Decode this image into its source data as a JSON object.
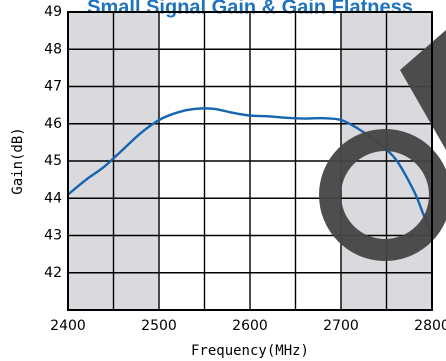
{
  "chart_data": {
    "type": "line",
    "title": "Small Signal Gain & Gain Flatness",
    "xlabel": "Frequency(MHz)",
    "ylabel": "Gain(dB)",
    "xlim": [
      2400,
      2800
    ],
    "ylim": [
      41,
      49
    ],
    "x_ticks": [
      2400,
      2500,
      2600,
      2700,
      2800
    ],
    "y_ticks": [
      42,
      43,
      44,
      45,
      46,
      47,
      48,
      49
    ],
    "grid": true,
    "shaded_x_ranges": [
      [
        2400,
        2500
      ],
      [
        2700,
        2800
      ]
    ],
    "series": [
      {
        "color": "#1565b0",
        "points": [
          [
            2400,
            44.1
          ],
          [
            2420,
            44.5
          ],
          [
            2440,
            44.85
          ],
          [
            2460,
            45.3
          ],
          [
            2480,
            45.75
          ],
          [
            2500,
            46.1
          ],
          [
            2520,
            46.3
          ],
          [
            2540,
            46.4
          ],
          [
            2560,
            46.4
          ],
          [
            2580,
            46.3
          ],
          [
            2600,
            46.22
          ],
          [
            2620,
            46.2
          ],
          [
            2640,
            46.16
          ],
          [
            2660,
            46.14
          ],
          [
            2680,
            46.15
          ],
          [
            2700,
            46.1
          ],
          [
            2720,
            45.85
          ],
          [
            2740,
            45.5
          ],
          [
            2760,
            45.05
          ],
          [
            2780,
            44.2
          ],
          [
            2790,
            43.6
          ],
          [
            2800,
            43.0
          ]
        ]
      }
    ]
  },
  "colors": {
    "title": "#1e73be",
    "shade": "#dadade",
    "grid": "#000000",
    "watermark": "#444444"
  }
}
